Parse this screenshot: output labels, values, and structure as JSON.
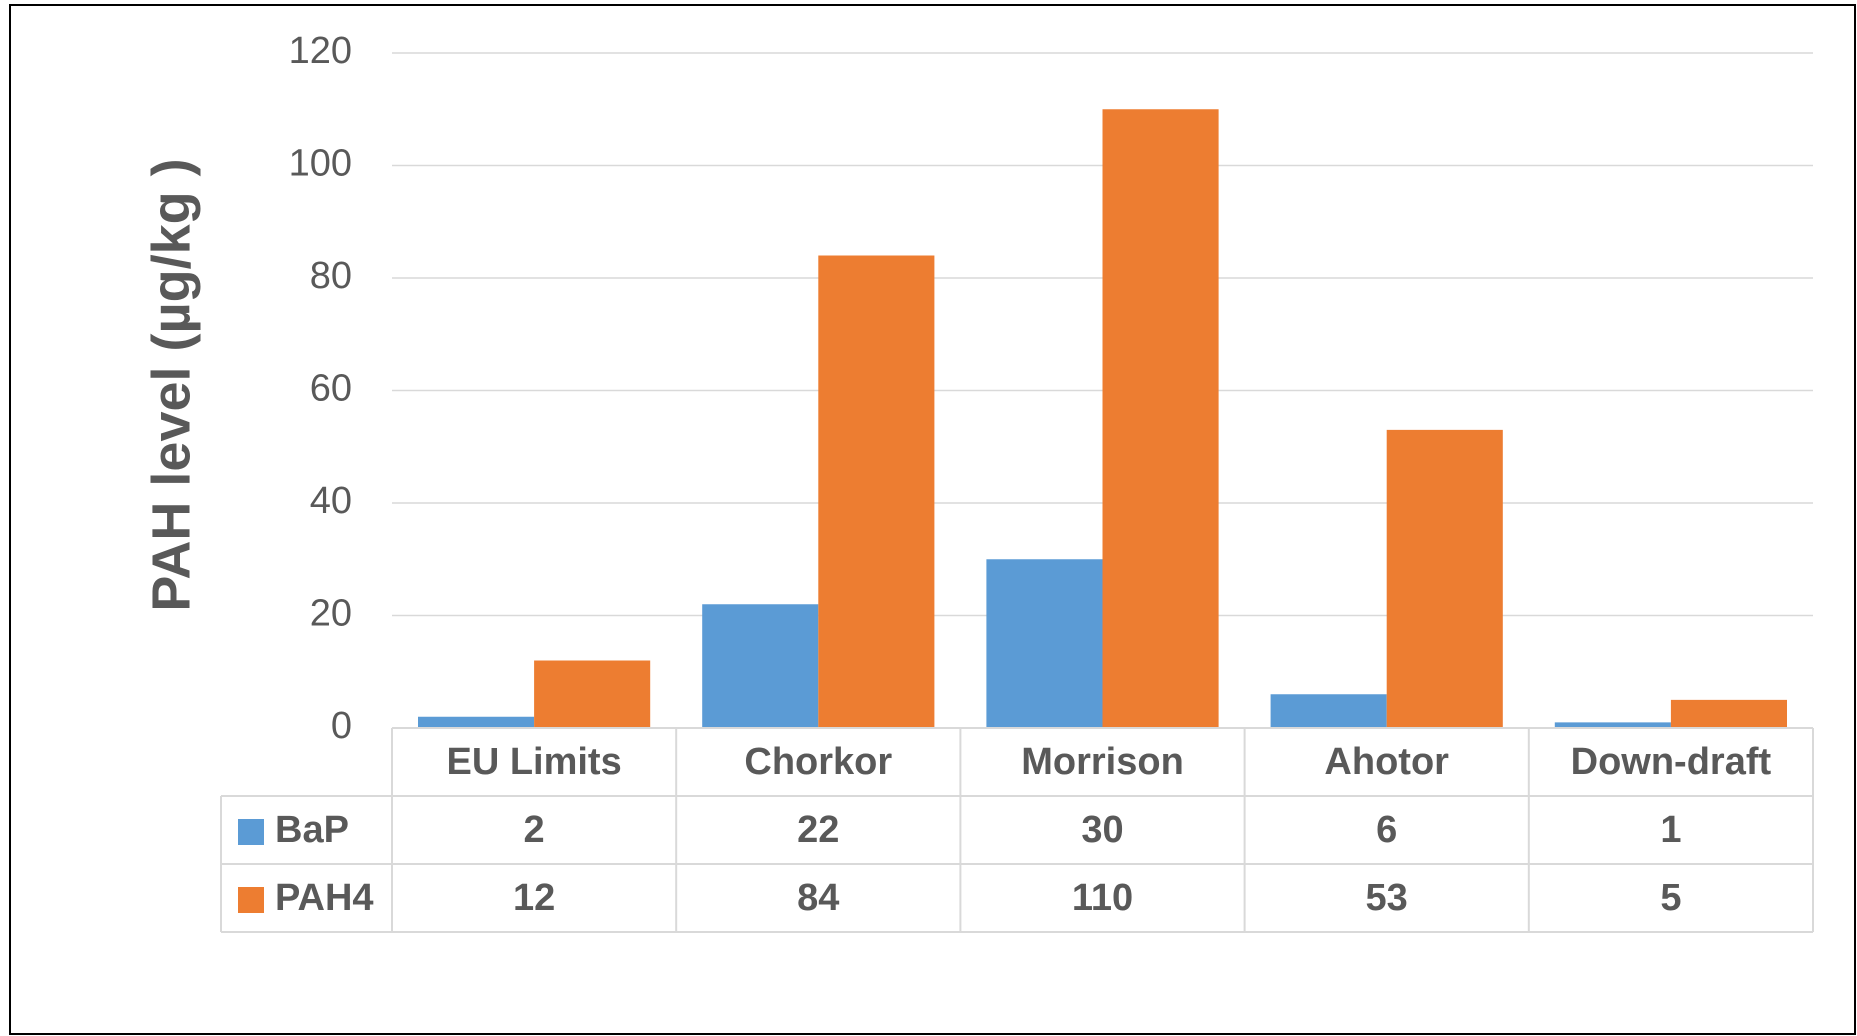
{
  "chart_data": {
    "type": "bar",
    "y_label": "PAH level  (µg/kg )",
    "categories": [
      "EU Limits",
      "Chorkor",
      "Morrison",
      "Ahotor",
      "Down-draft"
    ],
    "series": [
      {
        "name": "BaP",
        "color": "#5b9bd5",
        "values": [
          2,
          22,
          30,
          6,
          1
        ]
      },
      {
        "name": "PAH4",
        "color": "#ed7d31",
        "values": [
          12,
          84,
          110,
          53,
          5
        ]
      }
    ],
    "ylim": [
      0,
      120
    ],
    "yticks": [
      0,
      20,
      40,
      60,
      80,
      100,
      120
    ],
    "grid": true,
    "data_table": true
  }
}
